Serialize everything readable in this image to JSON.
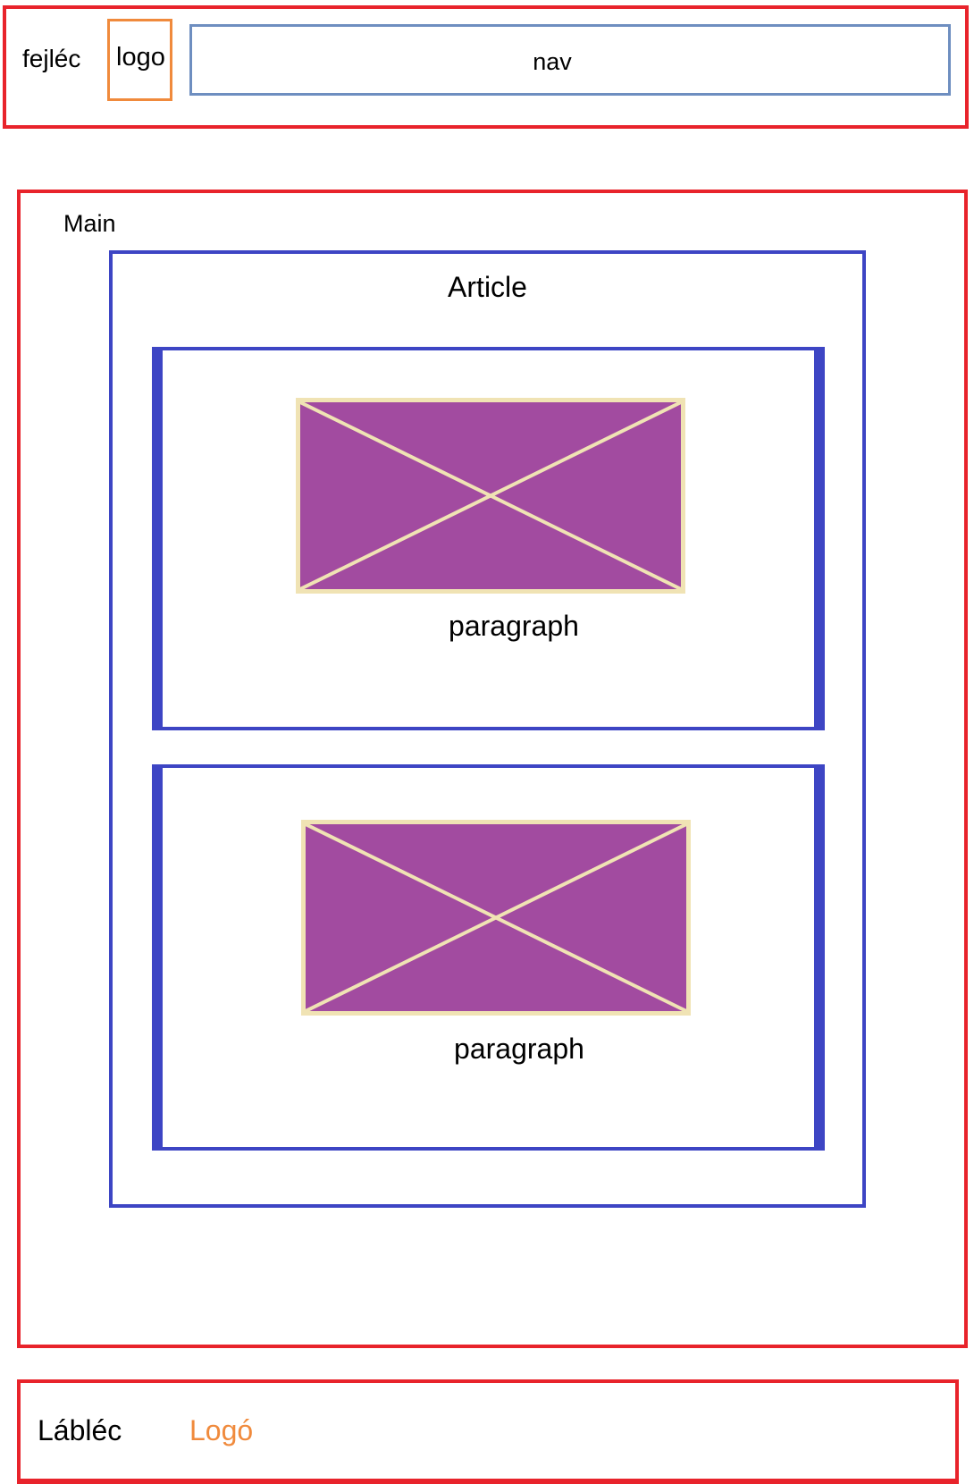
{
  "header": {
    "label": "fejléc",
    "logo": "logo",
    "nav": "nav"
  },
  "main": {
    "label": "Main",
    "article": {
      "label": "Article",
      "sections": [
        {
          "paragraph": "paragraph"
        },
        {
          "paragraph": "paragraph"
        }
      ]
    }
  },
  "footer": {
    "label": "Lábléc",
    "logo": "Logó"
  },
  "colors": {
    "region_border": "#e8232b",
    "logo_border": "#f08a3c",
    "nav_border": "#6e8ec0",
    "article_border": "#3d45c4",
    "image_fill": "#a24ba0",
    "image_stroke": "#f0e3b4",
    "footer_logo_text": "#f08a3c"
  }
}
